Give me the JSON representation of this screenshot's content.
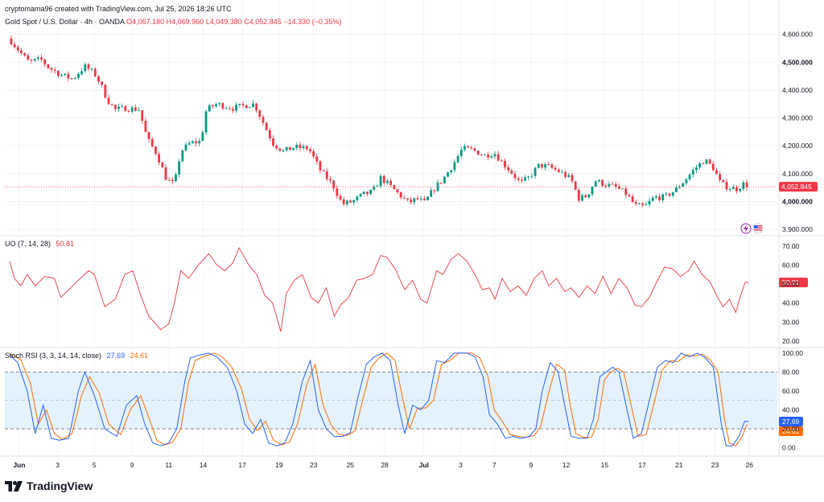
{
  "header": {
    "credit": "cryptomama96 created with TradingView.com, Jul 25, 2026 18:26 UTC"
  },
  "symbol": {
    "name": "Gold Spot / U.S. Dollar · 4h · OANDA",
    "open": "O4,067.180",
    "high": "H4,069.960",
    "low": "L4,049.380",
    "close": "C4,052.845",
    "change": "−14.330 (−0.35%)"
  },
  "colors": {
    "up": "#089981",
    "down": "#f23645",
    "uo_line": "#f23645",
    "stoch_k": "#2962ff",
    "stoch_d": "#ff6d00",
    "stoch_band": "#e3f2fd"
  },
  "icons": [
    "lightning-icon",
    "us-flag-icon",
    "tradingview-logo-icon"
  ],
  "uo": {
    "label": "UO (7, 14, 28)",
    "value": "50.81"
  },
  "stoch": {
    "label": "Stoch RSI (3, 3, 14, 14, close)",
    "k_value": "27.69",
    "d_value": "24.61"
  },
  "logo": {
    "text": "TradingView"
  },
  "chart_data": {
    "type": "candlestick",
    "price_axis": {
      "ticks": [
        "4,600.000",
        "4,500.000",
        "4,400.000",
        "4,300.000",
        "4,200.000",
        "4,100.000",
        "4,000.000",
        "3,900.000"
      ],
      "tick_values": [
        4600,
        4500,
        4400,
        4300,
        4200,
        4100,
        4000,
        3900
      ],
      "bold_ticks": [
        "4,500.000",
        "4,000.000"
      ],
      "range": [
        3880,
        4625
      ],
      "last_price": 4052.845,
      "last_price_label": "4,052.845"
    },
    "x_axis": {
      "range": [
        0,
        966
      ],
      "labels": [
        {
          "text": "Jun",
          "x": 18,
          "bold": true
        },
        {
          "text": "3",
          "x": 66
        },
        {
          "text": "5",
          "x": 112
        },
        {
          "text": "9",
          "x": 159
        },
        {
          "text": "11",
          "x": 205
        },
        {
          "text": "14",
          "x": 248
        },
        {
          "text": "17",
          "x": 297
        },
        {
          "text": "19",
          "x": 343
        },
        {
          "text": "23",
          "x": 386
        },
        {
          "text": "25",
          "x": 432
        },
        {
          "text": "28",
          "x": 475
        },
        {
          "text": "Jul",
          "x": 524,
          "bold": true
        },
        {
          "text": "3",
          "x": 570
        },
        {
          "text": "7",
          "x": 612
        },
        {
          "text": "9",
          "x": 658
        },
        {
          "text": "12",
          "x": 702
        },
        {
          "text": "15",
          "x": 750
        },
        {
          "text": "17",
          "x": 797
        },
        {
          "text": "21",
          "x": 843
        },
        {
          "text": "23",
          "x": 888
        },
        {
          "text": "26",
          "x": 931
        }
      ]
    },
    "price_path": [
      [
        8,
        4575
      ],
      [
        18,
        4540
      ],
      [
        30,
        4500
      ],
      [
        45,
        4510
      ],
      [
        55,
        4480
      ],
      [
        70,
        4455
      ],
      [
        85,
        4440
      ],
      [
        100,
        4485
      ],
      [
        112,
        4460
      ],
      [
        120,
        4420
      ],
      [
        128,
        4365
      ],
      [
        138,
        4330
      ],
      [
        150,
        4335
      ],
      [
        168,
        4330
      ],
      [
        178,
        4225
      ],
      [
        190,
        4170
      ],
      [
        202,
        4080
      ],
      [
        212,
        4060
      ],
      [
        220,
        4180
      ],
      [
        232,
        4210
      ],
      [
        245,
        4215
      ],
      [
        252,
        4330
      ],
      [
        265,
        4350
      ],
      [
        285,
        4335
      ],
      [
        300,
        4345
      ],
      [
        312,
        4350
      ],
      [
        322,
        4290
      ],
      [
        335,
        4210
      ],
      [
        348,
        4180
      ],
      [
        362,
        4195
      ],
      [
        380,
        4190
      ],
      [
        395,
        4110
      ],
      [
        410,
        4060
      ],
      [
        422,
        3990
      ],
      [
        435,
        4000
      ],
      [
        448,
        4025
      ],
      [
        460,
        4035
      ],
      [
        470,
        4085
      ],
      [
        480,
        4060
      ],
      [
        495,
        4020
      ],
      [
        505,
        3995
      ],
      [
        515,
        4010
      ],
      [
        525,
        3995
      ],
      [
        535,
        4040
      ],
      [
        548,
        4080
      ],
      [
        560,
        4130
      ],
      [
        572,
        4190
      ],
      [
        585,
        4185
      ],
      [
        600,
        4165
      ],
      [
        612,
        4175
      ],
      [
        622,
        4140
      ],
      [
        632,
        4110
      ],
      [
        645,
        4065
      ],
      [
        655,
        4085
      ],
      [
        668,
        4130
      ],
      [
        680,
        4125
      ],
      [
        695,
        4105
      ],
      [
        708,
        4080
      ],
      [
        718,
        4010
      ],
      [
        728,
        4020
      ],
      [
        738,
        4075
      ],
      [
        752,
        4060
      ],
      [
        765,
        4050
      ],
      [
        778,
        4025
      ],
      [
        788,
        3985
      ],
      [
        800,
        3980
      ],
      [
        812,
        4015
      ],
      [
        825,
        4015
      ],
      [
        838,
        4040
      ],
      [
        850,
        4075
      ],
      [
        862,
        4115
      ],
      [
        875,
        4150
      ],
      [
        886,
        4120
      ],
      [
        895,
        4065
      ],
      [
        905,
        4050
      ],
      [
        915,
        4045
      ],
      [
        925,
        4065
      ],
      [
        930,
        4053
      ]
    ],
    "uo_axis": {
      "ticks": [
        "70.00",
        "60.00",
        "50.00",
        "40.00",
        "30.00",
        "20.00"
      ],
      "tick_values": [
        70,
        60,
        50,
        40,
        30,
        20
      ],
      "range": [
        17,
        75
      ]
    },
    "uo_series": [
      [
        6,
        62
      ],
      [
        12,
        53
      ],
      [
        20,
        49
      ],
      [
        28,
        55
      ],
      [
        38,
        49
      ],
      [
        50,
        54
      ],
      [
        62,
        53
      ],
      [
        70,
        43
      ],
      [
        80,
        47
      ],
      [
        92,
        52
      ],
      [
        105,
        57
      ],
      [
        112,
        55
      ],
      [
        125,
        38
      ],
      [
        138,
        42
      ],
      [
        150,
        55
      ],
      [
        160,
        57
      ],
      [
        170,
        44
      ],
      [
        180,
        33
      ],
      [
        195,
        26
      ],
      [
        205,
        29
      ],
      [
        212,
        40
      ],
      [
        220,
        57
      ],
      [
        230,
        53
      ],
      [
        242,
        60
      ],
      [
        255,
        66
      ],
      [
        265,
        60
      ],
      [
        275,
        57
      ],
      [
        285,
        61
      ],
      [
        293,
        69
      ],
      [
        305,
        60
      ],
      [
        315,
        55
      ],
      [
        325,
        44
      ],
      [
        335,
        40
      ],
      [
        345,
        25
      ],
      [
        352,
        45
      ],
      [
        362,
        52
      ],
      [
        372,
        55
      ],
      [
        383,
        43
      ],
      [
        392,
        40
      ],
      [
        402,
        48
      ],
      [
        412,
        33
      ],
      [
        420,
        39
      ],
      [
        430,
        43
      ],
      [
        440,
        52
      ],
      [
        450,
        53
      ],
      [
        460,
        55
      ],
      [
        470,
        65
      ],
      [
        478,
        64
      ],
      [
        488,
        58
      ],
      [
        500,
        47
      ],
      [
        510,
        52
      ],
      [
        520,
        42
      ],
      [
        528,
        40
      ],
      [
        540,
        57
      ],
      [
        548,
        55
      ],
      [
        558,
        63
      ],
      [
        567,
        66
      ],
      [
        578,
        62
      ],
      [
        588,
        55
      ],
      [
        597,
        47
      ],
      [
        606,
        48
      ],
      [
        613,
        42
      ],
      [
        622,
        53
      ],
      [
        632,
        46
      ],
      [
        642,
        49
      ],
      [
        652,
        44
      ],
      [
        662,
        53
      ],
      [
        672,
        57
      ],
      [
        680,
        49
      ],
      [
        690,
        53
      ],
      [
        700,
        46
      ],
      [
        708,
        48
      ],
      [
        718,
        43
      ],
      [
        728,
        49
      ],
      [
        738,
        45
      ],
      [
        748,
        54
      ],
      [
        758,
        45
      ],
      [
        768,
        53
      ],
      [
        778,
        48
      ],
      [
        788,
        39
      ],
      [
        796,
        38
      ],
      [
        806,
        43
      ],
      [
        815,
        51
      ],
      [
        825,
        59
      ],
      [
        835,
        58
      ],
      [
        845,
        54
      ],
      [
        855,
        57
      ],
      [
        862,
        62
      ],
      [
        872,
        55
      ],
      [
        882,
        51
      ],
      [
        890,
        44
      ],
      [
        898,
        38
      ],
      [
        906,
        42
      ],
      [
        914,
        35
      ],
      [
        920,
        44
      ],
      [
        926,
        51
      ],
      [
        930,
        50.81
      ]
    ],
    "stoch_axis": {
      "ticks": [
        "100.00",
        "80.00",
        "60.00",
        "40.00",
        "20.00",
        "0.00"
      ],
      "tick_values": [
        100,
        80,
        60,
        40,
        20,
        0
      ],
      "range": [
        -8,
        105
      ],
      "band": [
        20,
        80
      ]
    },
    "stoch_k": [
      [
        6,
        98
      ],
      [
        16,
        90
      ],
      [
        28,
        60
      ],
      [
        38,
        15
      ],
      [
        48,
        45
      ],
      [
        58,
        10
      ],
      [
        68,
        8
      ],
      [
        80,
        10
      ],
      [
        92,
        60
      ],
      [
        100,
        80
      ],
      [
        112,
        55
      ],
      [
        125,
        20
      ],
      [
        140,
        12
      ],
      [
        152,
        45
      ],
      [
        165,
        55
      ],
      [
        175,
        25
      ],
      [
        185,
        5
      ],
      [
        195,
        2
      ],
      [
        205,
        5
      ],
      [
        215,
        20
      ],
      [
        225,
        70
      ],
      [
        232,
        95
      ],
      [
        244,
        98
      ],
      [
        255,
        100
      ],
      [
        265,
        96
      ],
      [
        278,
        85
      ],
      [
        290,
        60
      ],
      [
        300,
        25
      ],
      [
        310,
        15
      ],
      [
        320,
        30
      ],
      [
        330,
        5
      ],
      [
        340,
        2
      ],
      [
        350,
        5
      ],
      [
        360,
        25
      ],
      [
        372,
        70
      ],
      [
        382,
        92
      ],
      [
        392,
        40
      ],
      [
        402,
        20
      ],
      [
        412,
        12
      ],
      [
        422,
        12
      ],
      [
        432,
        16
      ],
      [
        442,
        55
      ],
      [
        452,
        88
      ],
      [
        462,
        96
      ],
      [
        472,
        100
      ],
      [
        482,
        92
      ],
      [
        492,
        45
      ],
      [
        500,
        15
      ],
      [
        510,
        45
      ],
      [
        520,
        40
      ],
      [
        530,
        50
      ],
      [
        540,
        92
      ],
      [
        550,
        90
      ],
      [
        562,
        100
      ],
      [
        578,
        100
      ],
      [
        588,
        96
      ],
      [
        598,
        75
      ],
      [
        606,
        35
      ],
      [
        616,
        25
      ],
      [
        626,
        10
      ],
      [
        636,
        12
      ],
      [
        646,
        10
      ],
      [
        656,
        12
      ],
      [
        664,
        20
      ],
      [
        672,
        60
      ],
      [
        682,
        90
      ],
      [
        692,
        80
      ],
      [
        700,
        45
      ],
      [
        708,
        12
      ],
      [
        718,
        10
      ],
      [
        728,
        10
      ],
      [
        736,
        30
      ],
      [
        744,
        75
      ],
      [
        752,
        80
      ],
      [
        760,
        85
      ],
      [
        768,
        80
      ],
      [
        778,
        40
      ],
      [
        786,
        10
      ],
      [
        796,
        15
      ],
      [
        806,
        50
      ],
      [
        816,
        85
      ],
      [
        826,
        92
      ],
      [
        836,
        90
      ],
      [
        846,
        100
      ],
      [
        856,
        96
      ],
      [
        866,
        100
      ],
      [
        876,
        95
      ],
      [
        886,
        85
      ],
      [
        896,
        25
      ],
      [
        902,
        2
      ],
      [
        910,
        2
      ],
      [
        918,
        12
      ],
      [
        925,
        28
      ],
      [
        930,
        27.69
      ]
    ],
    "stoch_d": [
      [
        6,
        99
      ],
      [
        20,
        93
      ],
      [
        32,
        68
      ],
      [
        42,
        25
      ],
      [
        52,
        40
      ],
      [
        62,
        15
      ],
      [
        72,
        9
      ],
      [
        84,
        15
      ],
      [
        96,
        55
      ],
      [
        106,
        75
      ],
      [
        118,
        58
      ],
      [
        130,
        25
      ],
      [
        145,
        14
      ],
      [
        157,
        40
      ],
      [
        170,
        55
      ],
      [
        180,
        32
      ],
      [
        190,
        8
      ],
      [
        200,
        3
      ],
      [
        210,
        6
      ],
      [
        220,
        20
      ],
      [
        230,
        70
      ],
      [
        238,
        92
      ],
      [
        250,
        97
      ],
      [
        262,
        100
      ],
      [
        272,
        96
      ],
      [
        284,
        85
      ],
      [
        296,
        62
      ],
      [
        306,
        30
      ],
      [
        316,
        18
      ],
      [
        326,
        28
      ],
      [
        336,
        8
      ],
      [
        346,
        3
      ],
      [
        356,
        6
      ],
      [
        366,
        25
      ],
      [
        378,
        68
      ],
      [
        388,
        88
      ],
      [
        398,
        45
      ],
      [
        408,
        24
      ],
      [
        418,
        14
      ],
      [
        428,
        13
      ],
      [
        438,
        18
      ],
      [
        448,
        52
      ],
      [
        458,
        85
      ],
      [
        468,
        95
      ],
      [
        478,
        100
      ],
      [
        488,
        92
      ],
      [
        498,
        50
      ],
      [
        506,
        20
      ],
      [
        516,
        42
      ],
      [
        526,
        42
      ],
      [
        536,
        50
      ],
      [
        546,
        88
      ],
      [
        556,
        92
      ],
      [
        568,
        100
      ],
      [
        584,
        100
      ],
      [
        594,
        95
      ],
      [
        604,
        76
      ],
      [
        612,
        40
      ],
      [
        622,
        28
      ],
      [
        632,
        14
      ],
      [
        642,
        12
      ],
      [
        652,
        11
      ],
      [
        662,
        13
      ],
      [
        670,
        22
      ],
      [
        680,
        58
      ],
      [
        690,
        88
      ],
      [
        700,
        82
      ],
      [
        706,
        50
      ],
      [
        714,
        15
      ],
      [
        724,
        11
      ],
      [
        734,
        11
      ],
      [
        742,
        30
      ],
      [
        750,
        72
      ],
      [
        758,
        80
      ],
      [
        766,
        84
      ],
      [
        774,
        80
      ],
      [
        784,
        42
      ],
      [
        792,
        12
      ],
      [
        802,
        14
      ],
      [
        812,
        48
      ],
      [
        822,
        82
      ],
      [
        832,
        92
      ],
      [
        842,
        91
      ],
      [
        852,
        98
      ],
      [
        862,
        97
      ],
      [
        872,
        99
      ],
      [
        882,
        93
      ],
      [
        892,
        80
      ],
      [
        900,
        30
      ],
      [
        906,
        5
      ],
      [
        914,
        2
      ],
      [
        922,
        12
      ],
      [
        928,
        24.61
      ]
    ]
  }
}
